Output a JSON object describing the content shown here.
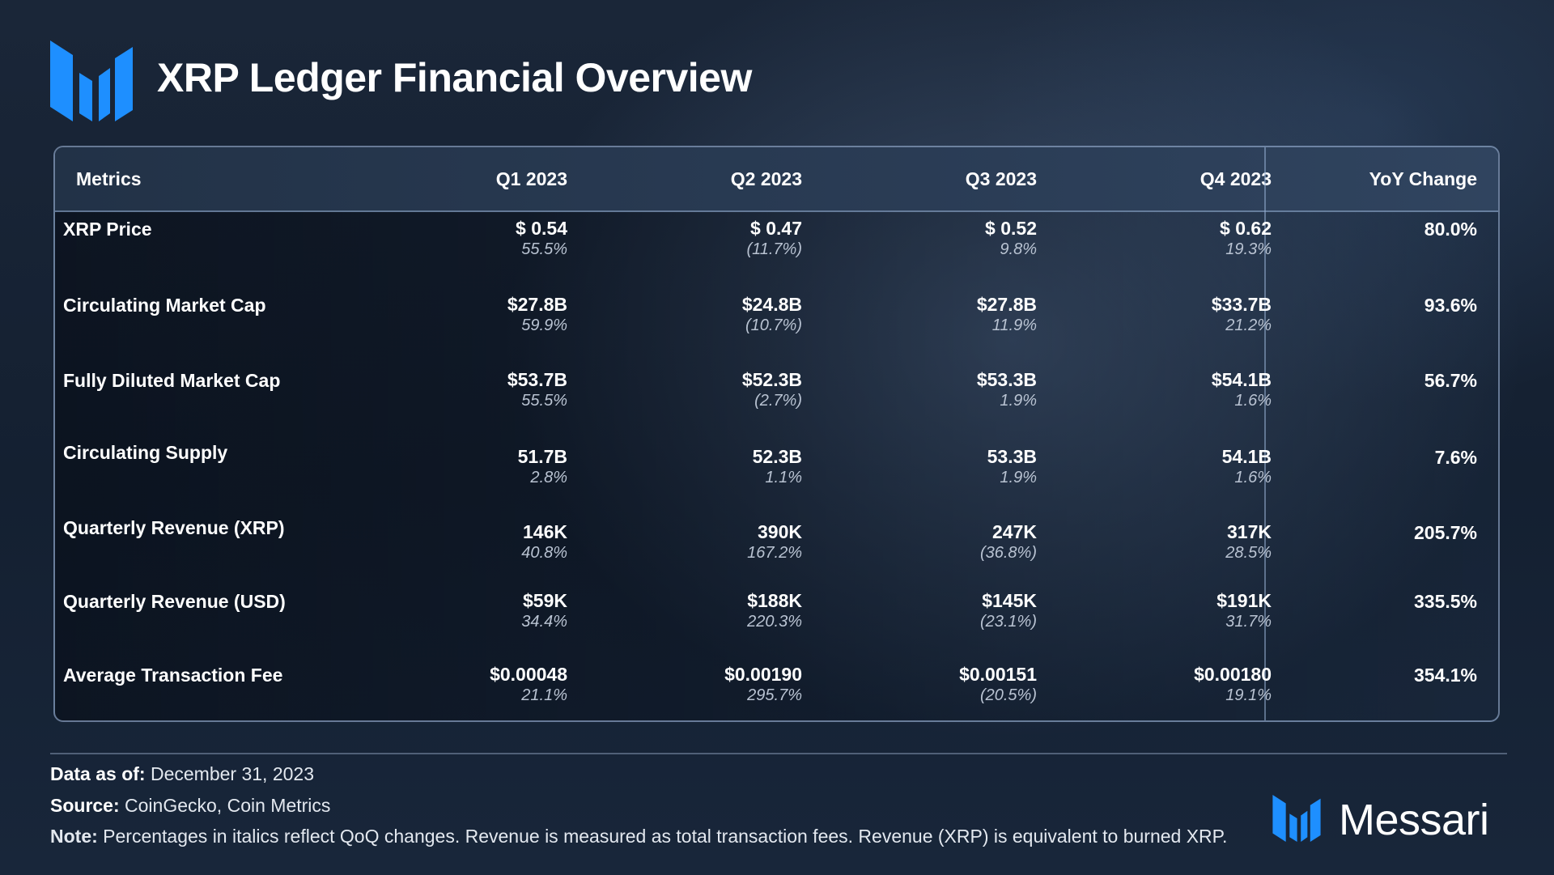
{
  "header": {
    "title": "XRP Ledger Financial Overview",
    "logo_icon": "messari-logo-icon"
  },
  "table": {
    "columns": [
      "Metrics",
      "Q1 2023",
      "Q2 2023",
      "Q3 2023",
      "Q4 2023",
      "YoY Change"
    ],
    "rows": [
      {
        "metric": "XRP Price",
        "q": [
          {
            "value": "$ 0.54",
            "change": "55.5%"
          },
          {
            "value": "$ 0.47",
            "change": "(11.7%)"
          },
          {
            "value": "$ 0.52",
            "change": "9.8%"
          },
          {
            "value": "$ 0.62",
            "change": "19.3%"
          }
        ],
        "yoy": "80.0%"
      },
      {
        "metric": "Circulating Market Cap",
        "q": [
          {
            "value": "$27.8B",
            "change": "59.9%"
          },
          {
            "value": "$24.8B",
            "change": "(10.7%)"
          },
          {
            "value": "$27.8B",
            "change": "11.9%"
          },
          {
            "value": "$33.7B",
            "change": "21.2%"
          }
        ],
        "yoy": "93.6%"
      },
      {
        "metric": "Fully Diluted Market Cap",
        "q": [
          {
            "value": "$53.7B",
            "change": "55.5%"
          },
          {
            "value": "$52.3B",
            "change": "(2.7%)"
          },
          {
            "value": "$53.3B",
            "change": "1.9%"
          },
          {
            "value": "$54.1B",
            "change": "1.6%"
          }
        ],
        "yoy": "56.7%"
      },
      {
        "metric": "Circulating Supply",
        "q": [
          {
            "value": "51.7B",
            "change": "2.8%"
          },
          {
            "value": "52.3B",
            "change": "1.1%"
          },
          {
            "value": "53.3B",
            "change": "1.9%"
          },
          {
            "value": "54.1B",
            "change": "1.6%"
          }
        ],
        "yoy": "7.6%"
      },
      {
        "metric": "Quarterly Revenue (XRP)",
        "q": [
          {
            "value": "146K",
            "change": "40.8%"
          },
          {
            "value": "390K",
            "change": "167.2%"
          },
          {
            "value": "247K",
            "change": "(36.8%)"
          },
          {
            "value": "317K",
            "change": "28.5%"
          }
        ],
        "yoy": "205.7%"
      },
      {
        "metric": "Quarterly Revenue (USD)",
        "q": [
          {
            "value": "$59K",
            "change": "34.4%"
          },
          {
            "value": "$188K",
            "change": "220.3%"
          },
          {
            "value": "$145K",
            "change": "(23.1%)"
          },
          {
            "value": "$191K",
            "change": "31.7%"
          }
        ],
        "yoy": "335.5%"
      },
      {
        "metric": "Average Transaction Fee",
        "q": [
          {
            "value": "$0.00048",
            "change": "21.1%"
          },
          {
            "value": "$0.00190",
            "change": "295.7%"
          },
          {
            "value": "$0.00151",
            "change": "(20.5%)"
          },
          {
            "value": "$0.00180",
            "change": "19.1%"
          }
        ],
        "yoy": "354.1%"
      }
    ]
  },
  "footer": {
    "data_as_of_label": "Data as of:",
    "data_as_of_value": "December 31, 2023",
    "source_label": "Source:",
    "source_value": "CoinGecko, Coin Metrics",
    "note_label": "Note:",
    "note_value": "Percentages in italics reflect QoQ changes. Revenue is measured as total transaction fees. Revenue (XRP) is equivalent to burned XRP."
  },
  "brand": {
    "name": "Messari",
    "logo_icon": "messari-logo-icon"
  },
  "colors": {
    "logo_blue": "#1e90ff",
    "logo_blue_dark": "#0b6fd8",
    "change_text": "#b9c3d2"
  }
}
